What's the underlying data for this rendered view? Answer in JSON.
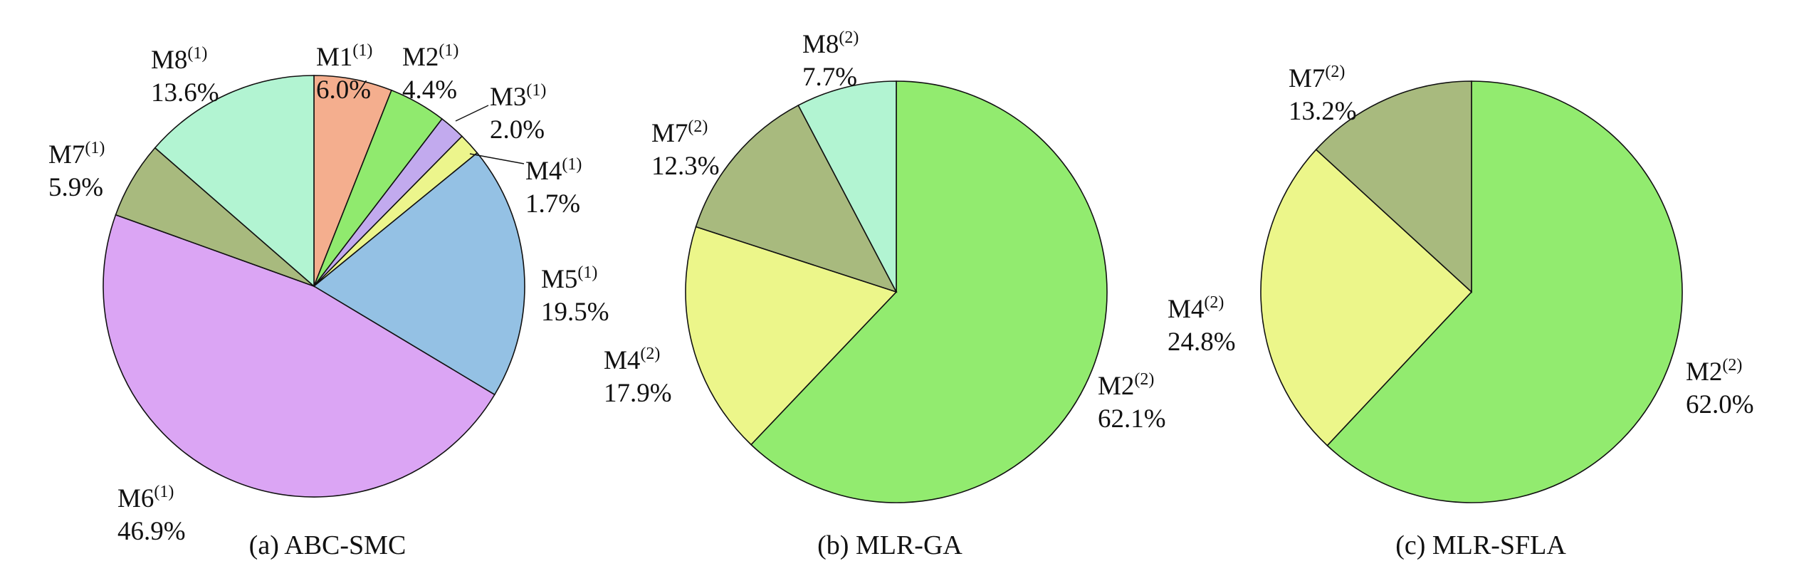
{
  "chart_data": [
    {
      "type": "pie",
      "title": "(a) ABC-SMC",
      "slices": [
        {
          "name": "M1",
          "sup": "(1)",
          "pct_label": "6.0%",
          "value": 6.0,
          "color": "#f4ae8e"
        },
        {
          "name": "M2",
          "sup": "(1)",
          "pct_label": "4.4%",
          "value": 4.4,
          "color": "#90ea6e"
        },
        {
          "name": "M3",
          "sup": "(1)",
          "pct_label": "2.0%",
          "value": 2.0,
          "color": "#c2aaee"
        },
        {
          "name": "M4",
          "sup": "(1)",
          "pct_label": "1.7%",
          "value": 1.7,
          "color": "#ecf58c"
        },
        {
          "name": "M5",
          "sup": "(1)",
          "pct_label": "19.5%",
          "value": 19.5,
          "color": "#94c1e4"
        },
        {
          "name": "M6",
          "sup": "(1)",
          "pct_label": "46.9%",
          "value": 46.9,
          "color": "#dba5f4"
        },
        {
          "name": "M7",
          "sup": "(1)",
          "pct_label": "5.9%",
          "value": 5.9,
          "color": "#a8ba7e"
        },
        {
          "name": "M8",
          "sup": "(1)",
          "pct_label": "13.6%",
          "value": 13.6,
          "color": "#b2f4d2"
        }
      ]
    },
    {
      "type": "pie",
      "title": "(b) MLR-GA",
      "slices": [
        {
          "name": "M2",
          "sup": "(2)",
          "pct_label": "62.1%",
          "value": 62.1,
          "color": "#92eb6f"
        },
        {
          "name": "M4",
          "sup": "(2)",
          "pct_label": "17.9%",
          "value": 17.9,
          "color": "#ecf68a"
        },
        {
          "name": "M7",
          "sup": "(2)",
          "pct_label": "12.3%",
          "value": 12.3,
          "color": "#a8ba7e"
        },
        {
          "name": "M8",
          "sup": "(2)",
          "pct_label": "7.7%",
          "value": 7.7,
          "color": "#b2f4d2"
        }
      ]
    },
    {
      "type": "pie",
      "title": "(c) MLR-SFLA",
      "slices": [
        {
          "name": "M2",
          "sup": "(2)",
          "pct_label": "62.0%",
          "value": 62.0,
          "color": "#92eb6f"
        },
        {
          "name": "M4",
          "sup": "(2)",
          "pct_label": "24.8%",
          "value": 24.8,
          "color": "#ecf68a"
        },
        {
          "name": "M7",
          "sup": "(2)",
          "pct_label": "13.2%",
          "value": 13.2,
          "color": "#a8ba7e"
        }
      ]
    }
  ]
}
